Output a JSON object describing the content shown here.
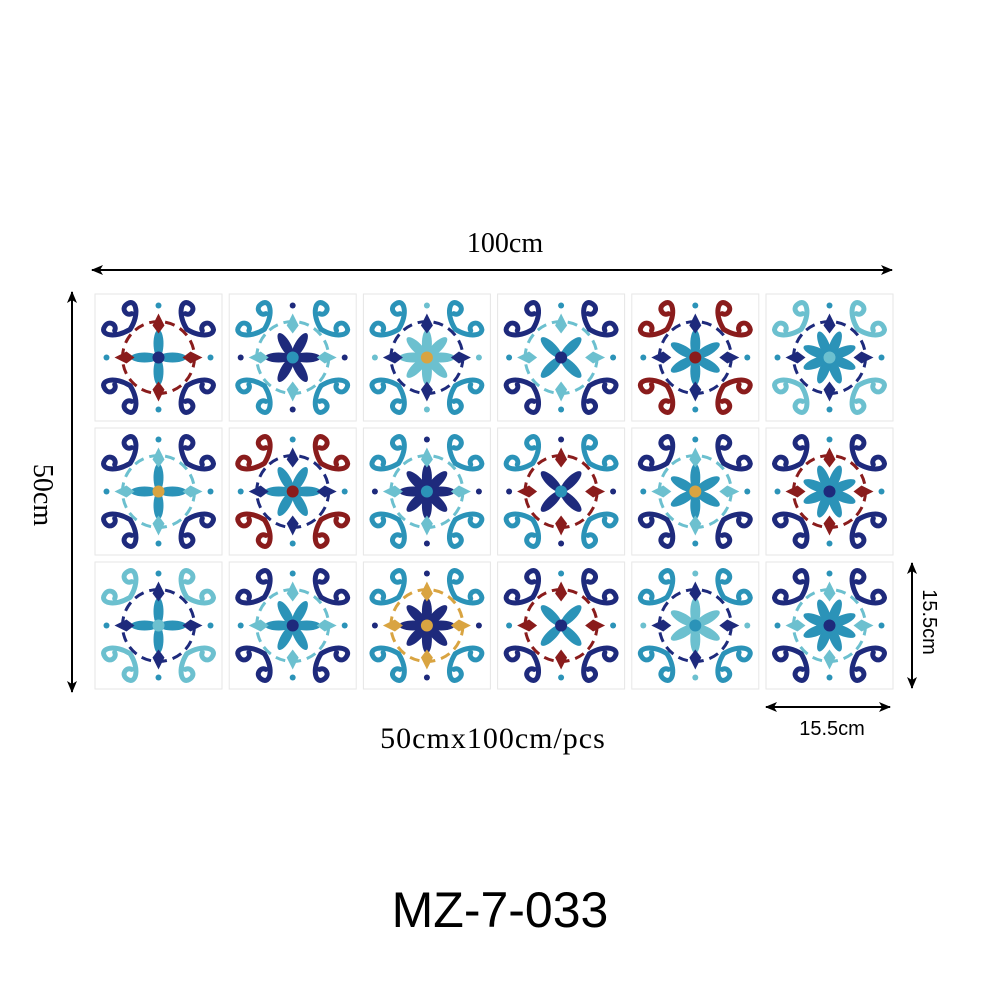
{
  "dimensions": {
    "width": "100cm",
    "height": "50cm",
    "tile_height": "15.5cm",
    "tile_width": "15.5cm",
    "caption": "50cmx100cm/pcs"
  },
  "model": "MZ-7-033"
}
